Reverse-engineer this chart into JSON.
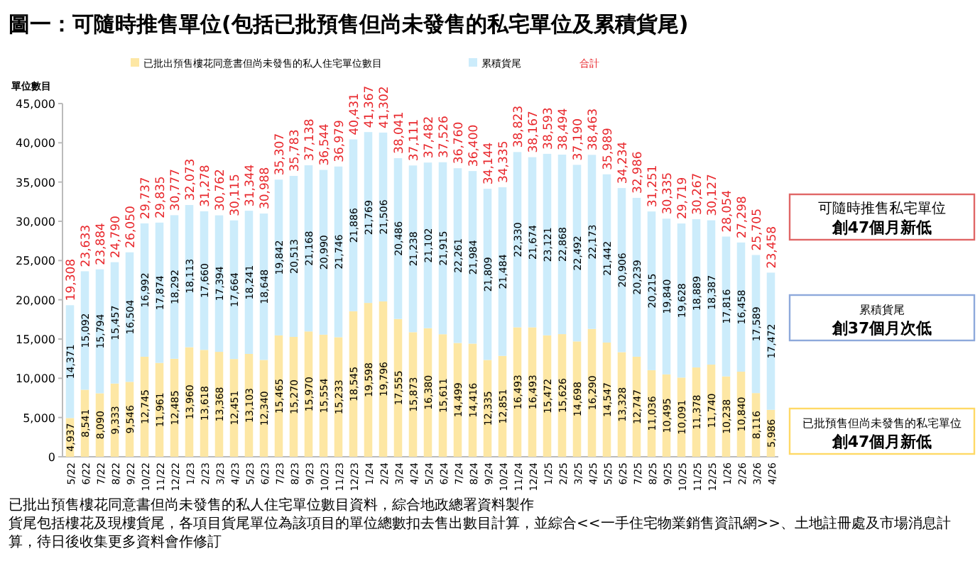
{
  "chart_data": {
    "type": "bar",
    "stacked": true,
    "title": "圖一：可隨時推售單位(包括已批預售但尚未發售的私宅單位及累積貨尾)",
    "ylabel": "單位數目",
    "categories": [
      "5/22",
      "6/22",
      "7/22",
      "8/22",
      "9/22",
      "10/22",
      "11/22",
      "12/22",
      "1/23",
      "2/23",
      "3/23",
      "4/23",
      "5/23",
      "6/23",
      "7/23",
      "8/23",
      "9/23",
      "10/23",
      "11/23",
      "12/23",
      "1/24",
      "2/24",
      "3/24",
      "4/24",
      "5/24",
      "6/24",
      "7/24",
      "8/24",
      "9/24",
      "10/24",
      "11/24",
      "12/24",
      "1/25",
      "2/25",
      "3/25",
      "4/25",
      "5/25",
      "6/25",
      "7/25",
      "8/25",
      "9/25",
      "10/25",
      "11/25",
      "12/25",
      "1/26",
      "2/26",
      "3/26",
      "4/26"
    ],
    "series": [
      {
        "name": "已批出預售樓花同意書但尚未發售的私人住宅單位數目",
        "color": "#fde7a4",
        "values": [
          4937,
          8541,
          8090,
          9333,
          9546,
          12745,
          11961,
          12485,
          13960,
          13618,
          13368,
          12451,
          13103,
          12340,
          15465,
          15270,
          15970,
          15554,
          15233,
          18545,
          19598,
          19796,
          17555,
          15873,
          16380,
          15611,
          14499,
          14416,
          12335,
          12851,
          16493,
          16493,
          15472,
          15626,
          14698,
          16290,
          14547,
          13328,
          12747,
          11036,
          10495,
          10091,
          11378,
          11740,
          10238,
          10840,
          8116,
          5986
        ],
        "value_labels": [
          "4,937",
          "8,541",
          "8,090",
          "9,333",
          "9,546",
          "12,745",
          "11,961",
          "12,485",
          "13,960",
          "13,618",
          "13,368",
          "12,451",
          "13,103",
          "12,340",
          "15,465",
          "15,270",
          "15,970",
          "15,554",
          "15,233",
          "18,545",
          "19,598",
          "19,796",
          "17,555",
          "15,873",
          "16,380",
          "15,611",
          "14,499",
          "14,416",
          "12,335",
          "12,851",
          "16,493",
          "16,493",
          "15,472",
          "15,626",
          "14,698",
          "16,290",
          "14,547",
          "13,328",
          "12,747",
          "11,036",
          "10,495",
          "10,091",
          "11,378",
          "11,740",
          "10,238",
          "10,840",
          "8,116",
          "5,986"
        ]
      },
      {
        "name": "累積貨尾",
        "color": "#ccecfb",
        "values": [
          14371,
          15092,
          15794,
          15457,
          16504,
          16992,
          17874,
          18292,
          18113,
          17660,
          17394,
          17664,
          18241,
          18648,
          19842,
          20513,
          21168,
          20990,
          21746,
          21886,
          21769,
          21506,
          20486,
          21238,
          21102,
          21915,
          22261,
          21984,
          21809,
          21484,
          22330,
          21674,
          23121,
          22868,
          22492,
          22173,
          21442,
          20906,
          20239,
          20215,
          19840,
          19628,
          18889,
          18387,
          17816,
          16458,
          17589,
          17472
        ],
        "value_labels": [
          "14,371",
          "15,092",
          "15,794",
          "15,457",
          "16,504",
          "16,992",
          "17,874",
          "18,292",
          "18,113",
          "17,660",
          "17,394",
          "17,664",
          "18,241",
          "18,648",
          "19,842",
          "20,513",
          "21,168",
          "20,990",
          "21,746",
          "21,886",
          "21,769",
          "21,506",
          "20,486",
          "21,238",
          "21,102",
          "21,915",
          "22,261",
          "21,984",
          "21,809",
          "21,484",
          "22,330",
          "21,674",
          "23,121",
          "22,868",
          "22,492",
          "22,173",
          "21,442",
          "20,906",
          "20,239",
          "20,215",
          "19,840",
          "19,628",
          "18,889",
          "18,387",
          "17,816",
          "16,458",
          "17,589",
          "17,472"
        ]
      }
    ],
    "totals": [
      "19,308",
      "23,633",
      "23,884",
      "24,790",
      "26,050",
      "29,737",
      "29,835",
      "30,777",
      "32,073",
      "31,278",
      "30,762",
      "30,115",
      "31,344",
      "30,988",
      "35,307",
      "35,783",
      "37,138",
      "36,544",
      "36,979",
      "40,431",
      "41,367",
      "41,302",
      "38,041",
      "37,111",
      "37,482",
      "37,526",
      "36,760",
      "36,400",
      "34,144",
      "34,335",
      "38,823",
      "38,167",
      "38,593",
      "38,494",
      "37,190",
      "38,463",
      "35,989",
      "34,234",
      "32,986",
      "31,251",
      "30,335",
      "29,719",
      "30,267",
      "30,127",
      "28,054",
      "27,298",
      "25,705",
      "23,458"
    ],
    "legend": "top",
    "ylim": [
      0,
      45000
    ],
    "yticks": [
      0,
      {
        "value": 5000,
        "label": "5,000"
      },
      {
        "value": 10000,
        "label": "10,000"
      },
      {
        "value": 15000,
        "label": "15,000"
      },
      {
        "value": 20000,
        "label": "20,000"
      },
      {
        "value": 25000,
        "label": "25,000"
      },
      {
        "value": 30000,
        "label": "30,000"
      },
      {
        "value": 35000,
        "label": "35,000"
      },
      {
        "value": 40000,
        "label": "40,000"
      },
      {
        "value": 45000,
        "label": "45,000"
      }
    ],
    "annotations": [
      "合計",
      "可隨時推售私宅單位",
      "創47個月新低",
      "累積貨尾",
      "創37個月次低",
      "已批預售但尚未發售的私宅單位",
      "創47個月新低",
      "已批出預售樓花同意書但尚未發售的私人住宅單位數目資料，綜合地政總署資料製作",
      "貨尾包括樓花及現樓貨尾，各項目貨尾單位為該項目的單位總數扣去售出數目計算，並綜合<<一手住宅物業銷售資訊網>>、土地註冊處及市場消息計算，待日後收集更多資料會作修訂"
    ]
  }
}
